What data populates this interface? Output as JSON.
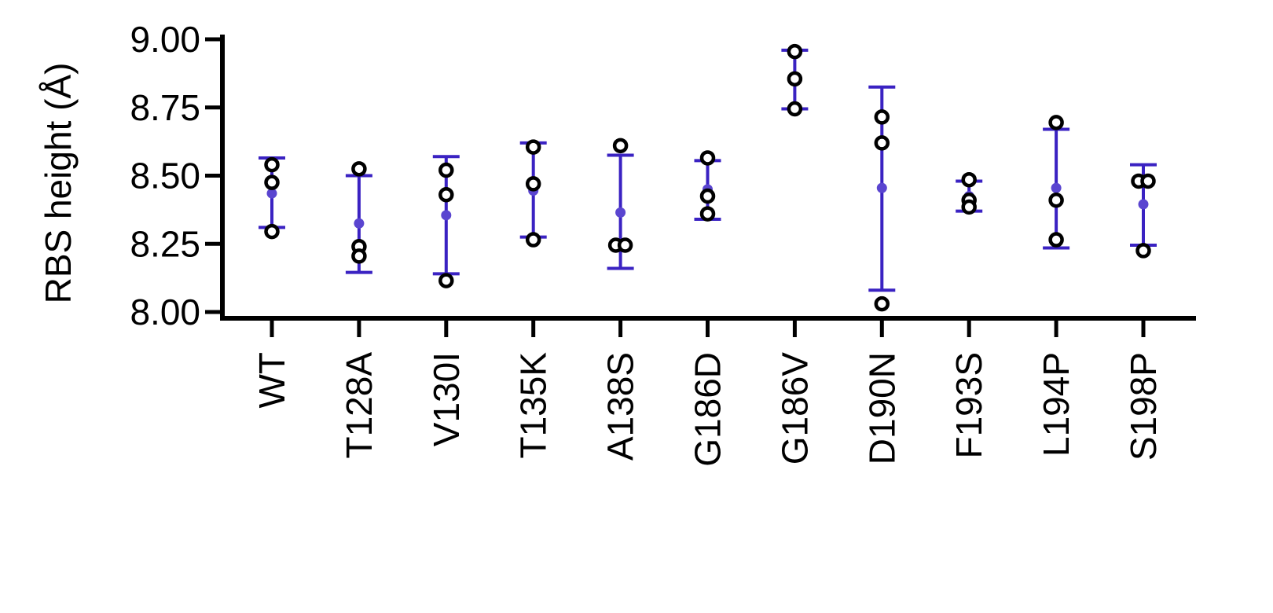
{
  "chart_data": {
    "type": "scatter",
    "title": "",
    "xlabel": "",
    "ylabel": "RBS height (Å)",
    "ylim": [
      8.0,
      9.0
    ],
    "yticks": [
      8.0,
      8.25,
      8.5,
      8.75,
      9.0
    ],
    "ytick_labels": [
      "8.00",
      "8.25",
      "8.50",
      "8.75",
      "9.00"
    ],
    "categories": [
      "WT",
      "T128A",
      "V130I",
      "T135K",
      "A138S",
      "G186D",
      "G186V",
      "D190N",
      "F193S",
      "L194P",
      "S198P"
    ],
    "replicates": [
      [
        8.54,
        8.475,
        8.295
      ],
      [
        8.525,
        8.24,
        8.205
      ],
      [
        8.52,
        8.43,
        8.115
      ],
      [
        8.605,
        8.47,
        8.265
      ],
      [
        8.61,
        8.245,
        8.245
      ],
      [
        8.565,
        8.425,
        8.36
      ],
      [
        8.955,
        8.855,
        8.745
      ],
      [
        8.715,
        8.62,
        8.03
      ],
      [
        8.485,
        8.41,
        8.385
      ],
      [
        8.695,
        8.41,
        8.265
      ],
      [
        8.48,
        8.48,
        8.225
      ]
    ],
    "mean": [
      8.435,
      8.325,
      8.355,
      8.445,
      8.365,
      8.45,
      8.85,
      8.455,
      8.425,
      8.455,
      8.395
    ],
    "error_low": [
      8.31,
      8.145,
      8.14,
      8.275,
      8.16,
      8.34,
      8.745,
      8.08,
      8.37,
      8.235,
      8.245
    ],
    "error_high": [
      8.565,
      8.5,
      8.57,
      8.62,
      8.575,
      8.555,
      8.96,
      8.825,
      8.48,
      8.67,
      8.54
    ],
    "grid": false,
    "legend": "none",
    "colors": {
      "error_bar": "#3a22c2",
      "mean_point": "#5a45d0",
      "replicate_edge": "#000000",
      "replicate_fill": "#ffffff",
      "axis": "#000000"
    }
  }
}
